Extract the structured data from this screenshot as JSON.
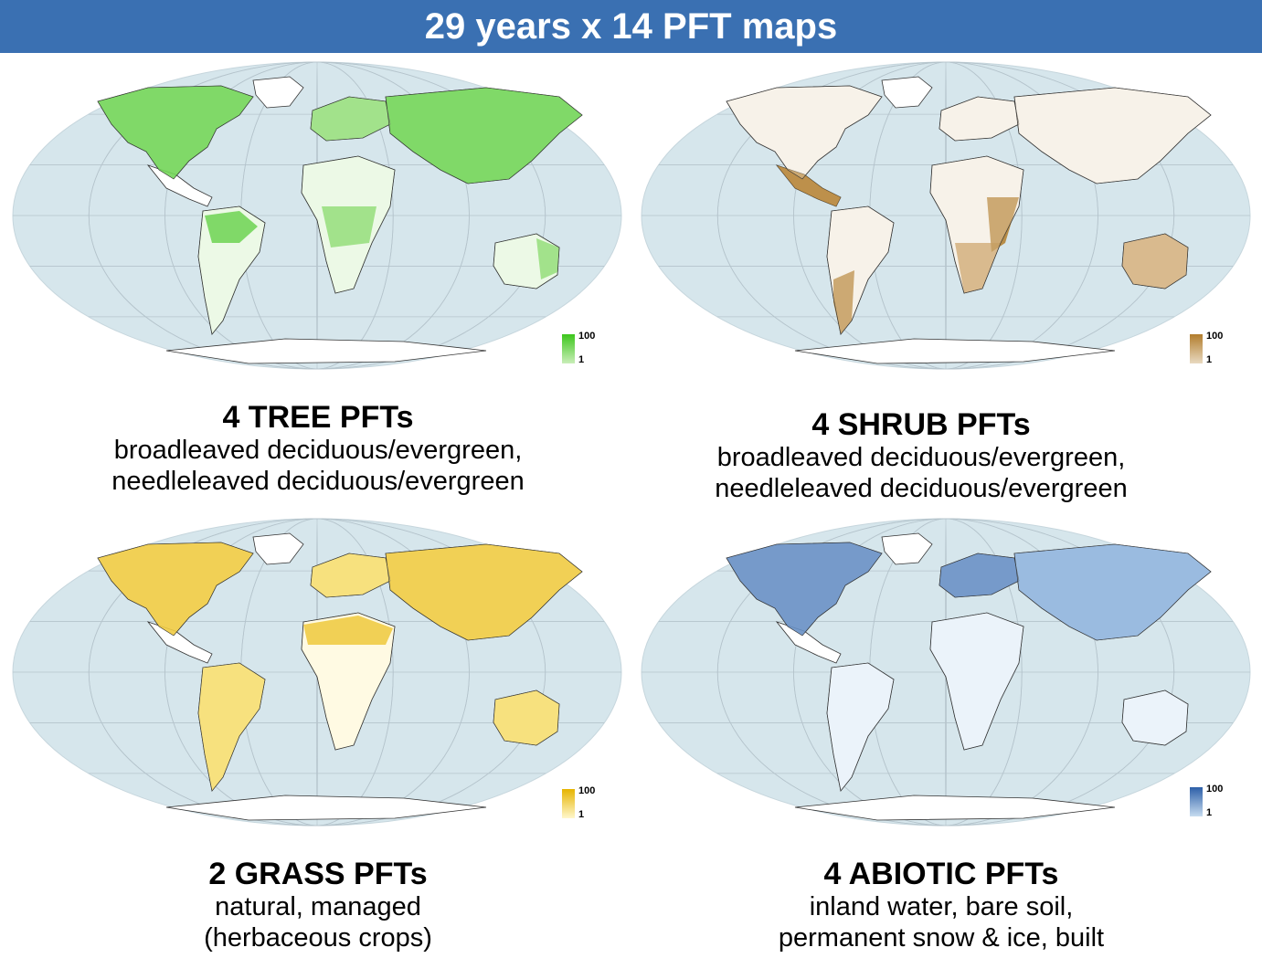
{
  "banner": {
    "title": "29 years x 14 PFT maps"
  },
  "colors": {
    "ocean": "#d6e6ec",
    "graticule": "#b5c4cc",
    "land_blank": "#ffffff",
    "banner": "#3a70b2"
  },
  "panels": [
    {
      "id": "tree",
      "title": "4 TREE PFTs",
      "subtitle": [
        "broadleaved deciduous/evergreen,",
        "needleleaved deciduous/evergreen"
      ],
      "legend": {
        "max": "100",
        "min": "1",
        "color_high": "#3cc61c",
        "color_low": "#c9eeb8"
      }
    },
    {
      "id": "shrub",
      "title": "4 SHRUB PFTs",
      "subtitle": [
        "broadleaved deciduous/evergreen,",
        "needleleaved deciduous/evergreen"
      ],
      "legend": {
        "max": "100",
        "min": "1",
        "color_high": "#b27d2c",
        "color_low": "#e8d9c0"
      }
    },
    {
      "id": "grass",
      "title": "2 GRASS PFTs",
      "subtitle": [
        "natural, managed",
        "(herbaceous crops)"
      ],
      "legend": {
        "max": "100",
        "min": "1",
        "color_high": "#e6b400",
        "color_low": "#fff7cc"
      }
    },
    {
      "id": "abiotic",
      "title": "4 ABIOTIC PFTs",
      "subtitle": [
        "inland water, bare soil,",
        "permanent snow & ice, built"
      ],
      "legend": {
        "max": "100",
        "min": "1",
        "color_high": "#2d5fa8",
        "color_low": "#c6dcf0"
      }
    }
  ]
}
